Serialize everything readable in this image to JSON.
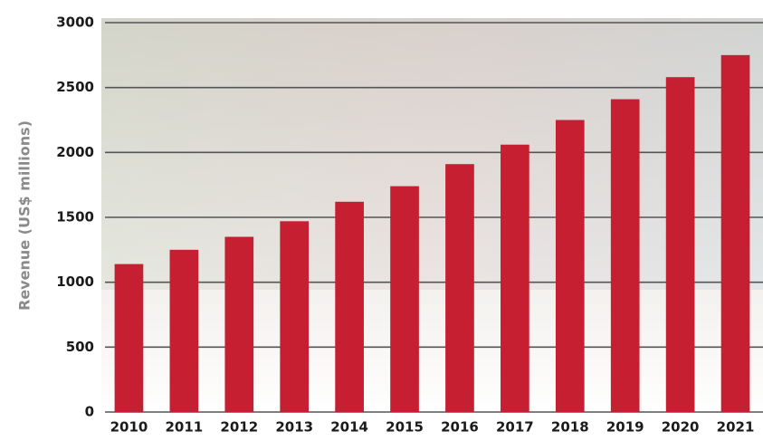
{
  "chart_data": {
    "type": "bar",
    "y_label": "Revenue (US$ millions)",
    "categories": [
      "2010",
      "2011",
      "2012",
      "2013",
      "2014",
      "2015",
      "2016",
      "2017",
      "2018",
      "2019",
      "2020",
      "2021"
    ],
    "values": [
      1140,
      1250,
      1350,
      1470,
      1620,
      1740,
      1910,
      2060,
      2250,
      2410,
      2580,
      2750
    ],
    "color": "#c61f31",
    "ylim": [
      0,
      3000
    ],
    "yticks": [
      0,
      500,
      1000,
      1500,
      2000,
      2500,
      3000
    ],
    "grid": true
  }
}
